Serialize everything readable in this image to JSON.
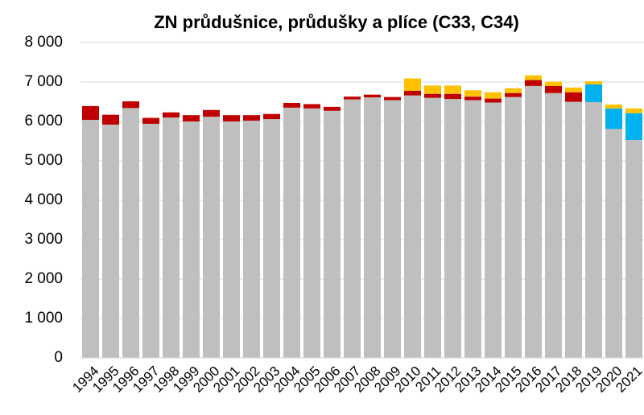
{
  "chart_data": {
    "type": "stacked_bar",
    "title": "ZN průdušnice, průdušky a plíce (C33, C34)",
    "categories": [
      "1994",
      "1995",
      "1996",
      "1997",
      "1998",
      "1999",
      "2000",
      "2001",
      "2002",
      "2003",
      "2004",
      "2005",
      "2006",
      "2007",
      "2008",
      "2009",
      "2010",
      "2011",
      "2012",
      "2013",
      "2014",
      "2015",
      "2016",
      "2017",
      "2018",
      "2019",
      "2020",
      "2021"
    ],
    "series": [
      {
        "color": "#bfbfbf",
        "values": [
          6040,
          5920,
          6340,
          5940,
          6100,
          6000,
          6120,
          6000,
          6020,
          6060,
          6350,
          6330,
          6270,
          6560,
          6610,
          6540,
          6660,
          6600,
          6570,
          6540,
          6480,
          6620,
          6900,
          6720,
          6500,
          6490,
          5810,
          5530
        ]
      },
      {
        "color": "#c00000",
        "values": [
          350,
          250,
          170,
          150,
          130,
          160,
          170,
          160,
          140,
          130,
          120,
          110,
          100,
          70,
          70,
          80,
          120,
          100,
          130,
          90,
          100,
          100,
          150,
          180,
          240,
          0,
          0,
          0
        ]
      },
      {
        "color": "#00b0f0",
        "values": [
          0,
          0,
          0,
          0,
          0,
          0,
          0,
          0,
          0,
          0,
          0,
          0,
          0,
          0,
          0,
          0,
          0,
          0,
          0,
          0,
          0,
          0,
          0,
          0,
          0,
          450,
          520,
          680
        ]
      },
      {
        "color": "#ffc000",
        "values": [
          0,
          0,
          0,
          0,
          0,
          0,
          0,
          0,
          0,
          0,
          0,
          0,
          0,
          0,
          0,
          0,
          310,
          210,
          210,
          160,
          160,
          120,
          120,
          110,
          120,
          80,
          100,
          120
        ]
      }
    ],
    "ylim": [
      0,
      8000
    ],
    "yticks": [
      0,
      {
        "value": 1000,
        "label": "1 000"
      },
      {
        "value": 2000,
        "label": "2 000"
      },
      {
        "value": 3000,
        "label": "3 000"
      },
      {
        "value": 4000,
        "label": "4 000"
      },
      {
        "value": 5000,
        "label": "5 000"
      },
      {
        "value": 6000,
        "label": "6 000"
      },
      {
        "value": 7000,
        "label": "7 000"
      },
      {
        "value": 8000,
        "label": "8 000"
      }
    ],
    "grid": true
  }
}
